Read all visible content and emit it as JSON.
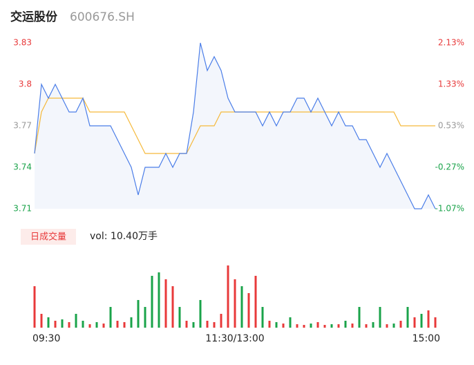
{
  "header": {
    "title": "交运股份",
    "code": "600676.SH"
  },
  "chart_data": {
    "type": "intraday",
    "categories": [
      "09:30",
      null,
      null,
      null,
      null,
      null,
      null,
      null,
      null,
      null,
      null,
      null,
      null,
      null,
      null,
      null,
      null,
      null,
      null,
      null,
      null,
      null,
      null,
      null,
      null,
      null,
      null,
      null,
      null,
      "11:30/13:00",
      null,
      null,
      null,
      null,
      null,
      null,
      null,
      null,
      null,
      null,
      null,
      null,
      null,
      null,
      null,
      null,
      null,
      null,
      null,
      null,
      null,
      null,
      null,
      null,
      null,
      null,
      null,
      null,
      "15:00"
    ],
    "series": [
      {
        "color": "#4a7de8",
        "values": [
          3.75,
          3.8,
          3.79,
          3.8,
          3.79,
          3.78,
          3.78,
          3.79,
          3.77,
          3.77,
          3.77,
          3.77,
          3.76,
          3.75,
          3.74,
          3.72,
          3.74,
          3.74,
          3.74,
          3.75,
          3.74,
          3.75,
          3.75,
          3.78,
          3.83,
          3.81,
          3.82,
          3.81,
          3.79,
          3.78,
          3.78,
          3.78,
          3.78,
          3.77,
          3.78,
          3.77,
          3.78,
          3.78,
          3.79,
          3.79,
          3.78,
          3.79,
          3.78,
          3.77,
          3.78,
          3.77,
          3.77,
          3.76,
          3.76,
          3.75,
          3.74,
          3.75,
          3.74,
          3.73,
          3.72,
          3.71,
          3.71,
          3.72,
          3.71
        ]
      },
      {
        "color": "#f5b93a",
        "values": [
          3.75,
          3.78,
          3.79,
          3.79,
          3.79,
          3.79,
          3.79,
          3.79,
          3.78,
          3.78,
          3.78,
          3.78,
          3.78,
          3.78,
          3.77,
          3.76,
          3.75,
          3.75,
          3.75,
          3.75,
          3.75,
          3.75,
          3.75,
          3.76,
          3.77,
          3.77,
          3.77,
          3.78,
          3.78,
          3.78,
          3.78,
          3.78,
          3.78,
          3.78,
          3.78,
          3.78,
          3.78,
          3.78,
          3.78,
          3.78,
          3.78,
          3.78,
          3.78,
          3.78,
          3.78,
          3.78,
          3.78,
          3.78,
          3.78,
          3.78,
          3.78,
          3.78,
          3.78,
          3.77,
          3.77,
          3.77,
          3.77,
          3.77,
          3.77
        ]
      }
    ],
    "ylim": [
      3.71,
      3.83
    ],
    "yticks": [
      3.83,
      3.8,
      3.77,
      3.74,
      3.71
    ],
    "y2lim": [
      -1.07,
      2.13
    ],
    "y2ticks": [
      {
        "value": 2.13,
        "label": "2.13%"
      },
      {
        "value": 1.33,
        "label": "1.33%"
      },
      {
        "value": 0.53,
        "label": "0.53%"
      },
      {
        "value": -0.27,
        "label": "-0.27%"
      },
      {
        "value": -1.07,
        "label": "-1.07%"
      }
    ],
    "tick_colors": [
      "#e8393a",
      "#e8393a",
      "#999999",
      "#1aa34a",
      "#1aa34a"
    ],
    "volume_label": "日成交量",
    "volume_text": "vol: 10.40万手",
    "volume": [
      60,
      20,
      15,
      10,
      12,
      8,
      20,
      10,
      5,
      8,
      6,
      30,
      10,
      8,
      15,
      40,
      30,
      75,
      80,
      70,
      60,
      30,
      10,
      8,
      40,
      10,
      8,
      20,
      90,
      70,
      60,
      50,
      75,
      30,
      10,
      8,
      6,
      15,
      5,
      4,
      6,
      8,
      4,
      5,
      5,
      10,
      6,
      30,
      5,
      8,
      30,
      5,
      6,
      10,
      30,
      15,
      20,
      25,
      15
    ],
    "volume_colors": [
      "#e8393a",
      "#e8393a",
      "#1aa34a",
      "#e8393a",
      "#1aa34a",
      "#e8393a",
      "#1aa34a",
      "#1aa34a",
      "#e8393a",
      "#1aa34a",
      "#e8393a",
      "#1aa34a",
      "#e8393a",
      "#e8393a",
      "#1aa34a",
      "#1aa34a",
      "#1aa34a",
      "#1aa34a",
      "#1aa34a",
      "#e8393a",
      "#e8393a",
      "#1aa34a",
      "#e8393a",
      "#1aa34a",
      "#1aa34a",
      "#e8393a",
      "#e8393a",
      "#e8393a",
      "#e8393a",
      "#e8393a",
      "#1aa34a",
      "#e8393a",
      "#e8393a",
      "#1aa34a",
      "#e8393a",
      "#1aa34a",
      "#e8393a",
      "#1aa34a",
      "#e8393a",
      "#e8393a",
      "#1aa34a",
      "#e8393a",
      "#e8393a",
      "#1aa34a",
      "#e8393a",
      "#1aa34a",
      "#e8393a",
      "#1aa34a",
      "#e8393a",
      "#1aa34a",
      "#1aa34a",
      "#e8393a",
      "#1aa34a",
      "#e8393a",
      "#1aa34a",
      "#e8393a",
      "#1aa34a",
      "#e8393a",
      "#e8393a"
    ]
  }
}
